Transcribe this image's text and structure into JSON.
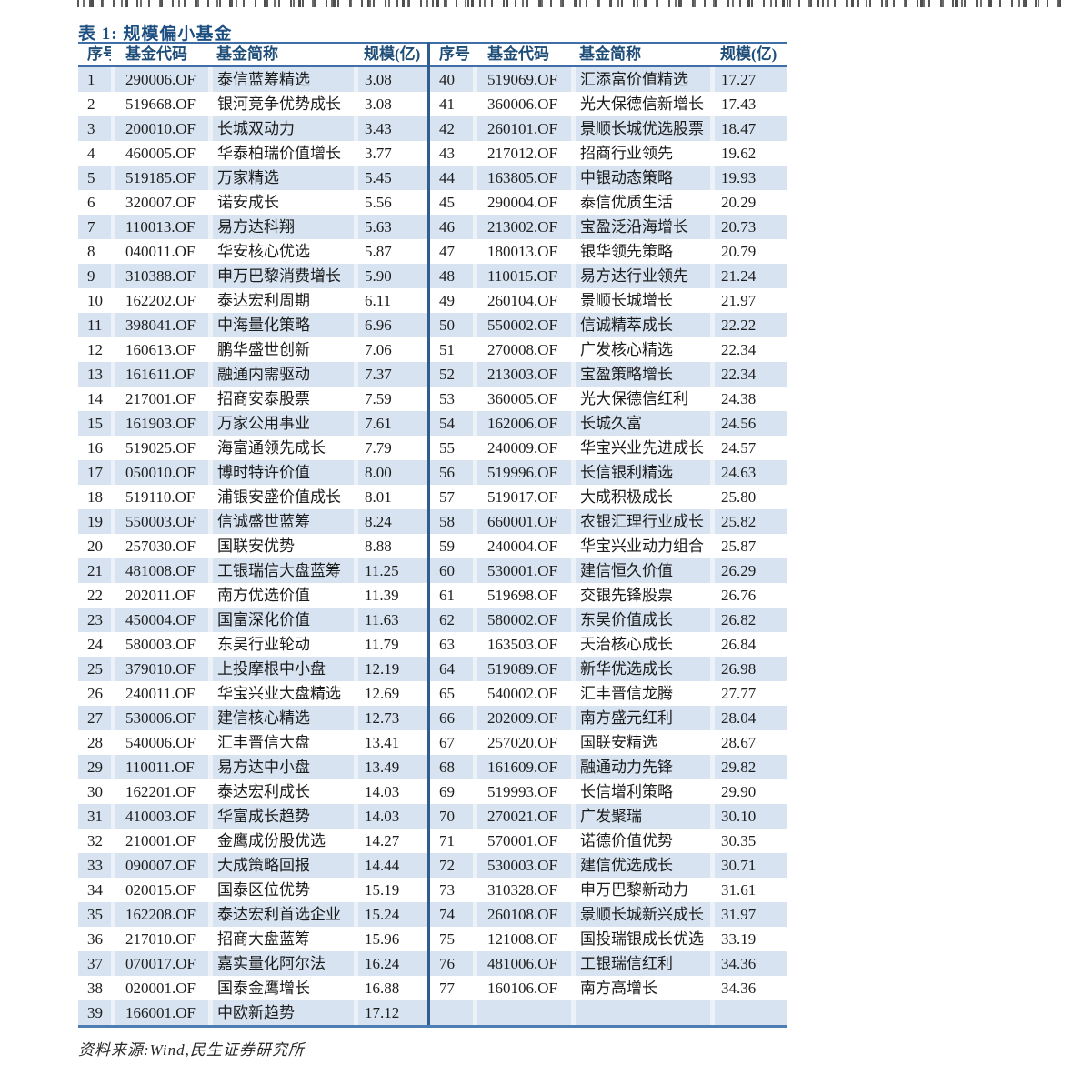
{
  "document": {
    "title": "表 1: 规模偏小基金",
    "source_note": "资料来源:Wind,民生证券研究所"
  },
  "colors": {
    "title_text": "#1d5080",
    "header_text": "#1f4e79",
    "border_blue": "#3f6fa6",
    "divider_blue": "#2e5d8e",
    "row_shade": "#d7e3f0"
  },
  "table": {
    "columns": [
      "序号",
      "基金代码",
      "基金简称",
      "规模(亿)"
    ],
    "left_rows": [
      [
        "1",
        "290006.OF",
        "泰信蓝筹精选",
        "3.08"
      ],
      [
        "2",
        "519668.OF",
        "银河竞争优势成长",
        "3.08"
      ],
      [
        "3",
        "200010.OF",
        "长城双动力",
        "3.43"
      ],
      [
        "4",
        "460005.OF",
        "华泰柏瑞价值增长",
        "3.77"
      ],
      [
        "5",
        "519185.OF",
        "万家精选",
        "5.45"
      ],
      [
        "6",
        "320007.OF",
        "诺安成长",
        "5.56"
      ],
      [
        "7",
        "110013.OF",
        "易方达科翔",
        "5.63"
      ],
      [
        "8",
        "040011.OF",
        "华安核心优选",
        "5.87"
      ],
      [
        "9",
        "310388.OF",
        "申万巴黎消费增长",
        "5.90"
      ],
      [
        "10",
        "162202.OF",
        "泰达宏利周期",
        "6.11"
      ],
      [
        "11",
        "398041.OF",
        "中海量化策略",
        "6.96"
      ],
      [
        "12",
        "160613.OF",
        "鹏华盛世创新",
        "7.06"
      ],
      [
        "13",
        "161611.OF",
        "融通内需驱动",
        "7.37"
      ],
      [
        "14",
        "217001.OF",
        "招商安泰股票",
        "7.59"
      ],
      [
        "15",
        "161903.OF",
        "万家公用事业",
        "7.61"
      ],
      [
        "16",
        "519025.OF",
        "海富通领先成长",
        "7.79"
      ],
      [
        "17",
        "050010.OF",
        "博时特许价值",
        "8.00"
      ],
      [
        "18",
        "519110.OF",
        "浦银安盛价值成长",
        "8.01"
      ],
      [
        "19",
        "550003.OF",
        "信诚盛世蓝筹",
        "8.24"
      ],
      [
        "20",
        "257030.OF",
        "国联安优势",
        "8.88"
      ],
      [
        "21",
        "481008.OF",
        "工银瑞信大盘蓝筹",
        "11.25"
      ],
      [
        "22",
        "202011.OF",
        "南方优选价值",
        "11.39"
      ],
      [
        "23",
        "450004.OF",
        "国富深化价值",
        "11.63"
      ],
      [
        "24",
        "580003.OF",
        "东吴行业轮动",
        "11.79"
      ],
      [
        "25",
        "379010.OF",
        "上投摩根中小盘",
        "12.19"
      ],
      [
        "26",
        "240011.OF",
        "华宝兴业大盘精选",
        "12.69"
      ],
      [
        "27",
        "530006.OF",
        "建信核心精选",
        "12.73"
      ],
      [
        "28",
        "540006.OF",
        "汇丰晋信大盘",
        "13.41"
      ],
      [
        "29",
        "110011.OF",
        "易方达中小盘",
        "13.49"
      ],
      [
        "30",
        "162201.OF",
        "泰达宏利成长",
        "14.03"
      ],
      [
        "31",
        "410003.OF",
        "华富成长趋势",
        "14.03"
      ],
      [
        "32",
        "210001.OF",
        "金鹰成份股优选",
        "14.27"
      ],
      [
        "33",
        "090007.OF",
        "大成策略回报",
        "14.44"
      ],
      [
        "34",
        "020015.OF",
        "国泰区位优势",
        "15.19"
      ],
      [
        "35",
        "162208.OF",
        "泰达宏利首选企业",
        "15.24"
      ],
      [
        "36",
        "217010.OF",
        "招商大盘蓝筹",
        "15.96"
      ],
      [
        "37",
        "070017.OF",
        "嘉实量化阿尔法",
        "16.24"
      ],
      [
        "38",
        "020001.OF",
        "国泰金鹰增长",
        "16.88"
      ],
      [
        "39",
        "166001.OF",
        "中欧新趋势",
        "17.12"
      ]
    ],
    "right_rows": [
      [
        "40",
        "519069.OF",
        "汇添富价值精选",
        "17.27"
      ],
      [
        "41",
        "360006.OF",
        "光大保德信新增长",
        "17.43"
      ],
      [
        "42",
        "260101.OF",
        "景顺长城优选股票",
        "18.47"
      ],
      [
        "43",
        "217012.OF",
        "招商行业领先",
        "19.62"
      ],
      [
        "44",
        "163805.OF",
        "中银动态策略",
        "19.93"
      ],
      [
        "45",
        "290004.OF",
        "泰信优质生活",
        "20.29"
      ],
      [
        "46",
        "213002.OF",
        "宝盈泛沿海增长",
        "20.73"
      ],
      [
        "47",
        "180013.OF",
        "银华领先策略",
        "20.79"
      ],
      [
        "48",
        "110015.OF",
        "易方达行业领先",
        "21.24"
      ],
      [
        "49",
        "260104.OF",
        "景顺长城增长",
        "21.97"
      ],
      [
        "50",
        "550002.OF",
        "信诚精萃成长",
        "22.22"
      ],
      [
        "51",
        "270008.OF",
        "广发核心精选",
        "22.34"
      ],
      [
        "52",
        "213003.OF",
        "宝盈策略增长",
        "22.34"
      ],
      [
        "53",
        "360005.OF",
        "光大保德信红利",
        "24.38"
      ],
      [
        "54",
        "162006.OF",
        "长城久富",
        "24.56"
      ],
      [
        "55",
        "240009.OF",
        "华宝兴业先进成长",
        "24.57"
      ],
      [
        "56",
        "519996.OF",
        "长信银利精选",
        "24.63"
      ],
      [
        "57",
        "519017.OF",
        "大成积极成长",
        "25.80"
      ],
      [
        "58",
        "660001.OF",
        "农银汇理行业成长",
        "25.82"
      ],
      [
        "59",
        "240004.OF",
        "华宝兴业动力组合",
        "25.87"
      ],
      [
        "60",
        "530001.OF",
        "建信恒久价值",
        "26.29"
      ],
      [
        "61",
        "519698.OF",
        "交银先锋股票",
        "26.76"
      ],
      [
        "62",
        "580002.OF",
        "东吴价值成长",
        "26.82"
      ],
      [
        "63",
        "163503.OF",
        "天治核心成长",
        "26.84"
      ],
      [
        "64",
        "519089.OF",
        "新华优选成长",
        "26.98"
      ],
      [
        "65",
        "540002.OF",
        "汇丰晋信龙腾",
        "27.77"
      ],
      [
        "66",
        "202009.OF",
        "南方盛元红利",
        "28.04"
      ],
      [
        "67",
        "257020.OF",
        "国联安精选",
        "28.67"
      ],
      [
        "68",
        "161609.OF",
        "融通动力先锋",
        "29.82"
      ],
      [
        "69",
        "519993.OF",
        "长信增利策略",
        "29.90"
      ],
      [
        "70",
        "270021.OF",
        "广发聚瑞",
        "30.10"
      ],
      [
        "71",
        "570001.OF",
        "诺德价值优势",
        "30.35"
      ],
      [
        "72",
        "530003.OF",
        "建信优选成长",
        "30.71"
      ],
      [
        "73",
        "310328.OF",
        "申万巴黎新动力",
        "31.61"
      ],
      [
        "74",
        "260108.OF",
        "景顺长城新兴成长",
        "31.97"
      ],
      [
        "75",
        "121008.OF",
        "国投瑞银成长优选",
        "33.19"
      ],
      [
        "76",
        "481006.OF",
        "工银瑞信红利",
        "34.36"
      ],
      [
        "77",
        "160106.OF",
        "南方高增长",
        "34.36"
      ],
      [
        "",
        "",
        "",
        ""
      ]
    ]
  }
}
